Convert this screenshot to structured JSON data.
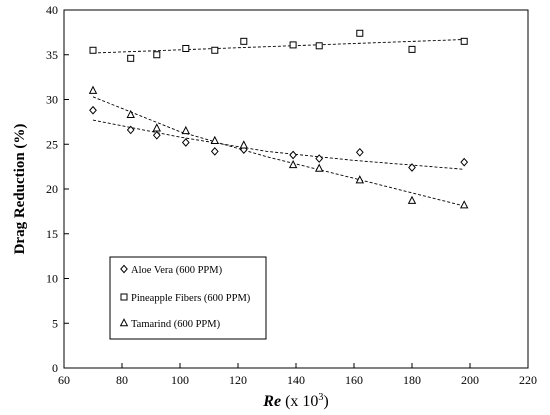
{
  "chart_data": {
    "type": "scatter",
    "xlabel_italic": "Re",
    "xlabel_rest": " (x 10",
    "xlabel_sup": "3",
    "xlabel_close": ")",
    "ylabel": "Drag Reduction (%)",
    "xlim": [
      60,
      220
    ],
    "ylim": [
      0,
      40
    ],
    "xticks": [
      60,
      80,
      100,
      120,
      140,
      160,
      180,
      200,
      220
    ],
    "yticks": [
      0,
      5,
      10,
      15,
      20,
      25,
      30,
      35,
      40
    ],
    "grid": false,
    "legend_position": "bottom-left",
    "series": [
      {
        "name": "Aloe Vera (600 PPM)",
        "marker": "diamond",
        "x": [
          70,
          83,
          92,
          102,
          112,
          122,
          139,
          148,
          162,
          180,
          198
        ],
        "y": [
          28.8,
          26.6,
          26.0,
          25.2,
          24.2,
          24.4,
          23.8,
          23.4,
          24.1,
          22.4,
          23.0
        ],
        "trend": [
          [
            70,
            27.7
          ],
          [
            100,
            25.8
          ],
          [
            130,
            24.2
          ],
          [
            160,
            23.2
          ],
          [
            198,
            22.2
          ]
        ]
      },
      {
        "name": "Pineapple Fibers (600 PPM)",
        "marker": "square",
        "x": [
          70,
          83,
          92,
          102,
          112,
          122,
          139,
          148,
          162,
          180,
          198
        ],
        "y": [
          35.5,
          34.6,
          35.0,
          35.7,
          35.5,
          36.5,
          36.1,
          36.0,
          37.4,
          35.6,
          36.5
        ],
        "trend": [
          [
            70,
            35.2
          ],
          [
            198,
            36.7
          ]
        ]
      },
      {
        "name": "Tamarind (600 PPM)",
        "marker": "triangle",
        "x": [
          70,
          83,
          92,
          102,
          112,
          122,
          139,
          148,
          162,
          180,
          198
        ],
        "y": [
          31.0,
          28.3,
          26.8,
          26.5,
          25.4,
          24.9,
          22.7,
          22.3,
          21.0,
          18.7,
          18.2
        ],
        "trend": [
          [
            70,
            30.3
          ],
          [
            100,
            26.4
          ],
          [
            130,
            23.6
          ],
          [
            160,
            21.2
          ],
          [
            198,
            18.1
          ]
        ]
      }
    ]
  }
}
